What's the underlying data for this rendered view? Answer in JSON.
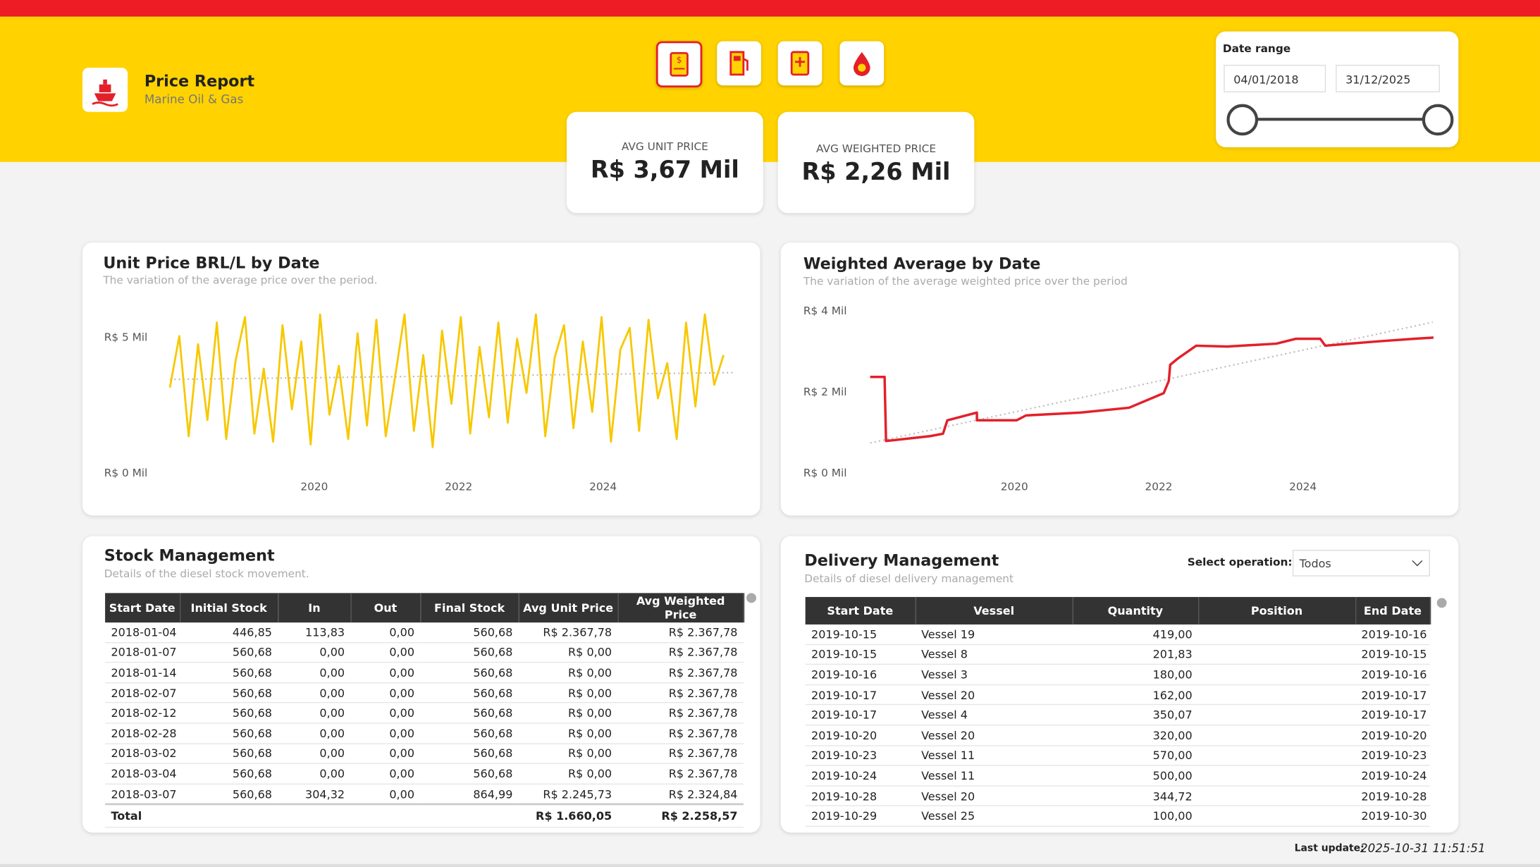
{
  "header": {
    "title": "Price Report",
    "subtitle": "Marine Oil & Gas"
  },
  "kpis": [
    {
      "label": "AVG UNIT PRICE",
      "value": "R$ 3,67 Mil"
    },
    {
      "label": "AVG WEIGHTED PRICE",
      "value": "R$ 2,26 Mil"
    }
  ],
  "date_range": {
    "label": "Date range",
    "start": "04/01/2018",
    "end": "31/12/2025"
  },
  "chart_data": [
    {
      "type": "line",
      "title": "Unit Price BRL/L by Date",
      "subtitle": "The variation of the average price over the period.",
      "x": [
        2018.0,
        2018.13,
        2018.26,
        2018.39,
        2018.52,
        2018.65,
        2018.78,
        2018.91,
        2019.04,
        2019.17,
        2019.3,
        2019.43,
        2019.56,
        2019.69,
        2019.82,
        2019.95,
        2020.08,
        2020.21,
        2020.34,
        2020.47,
        2020.6,
        2020.73,
        2020.86,
        2020.99,
        2021.12,
        2021.25,
        2021.38,
        2021.51,
        2021.64,
        2021.77,
        2021.9,
        2022.03,
        2022.16,
        2022.29,
        2022.42,
        2022.55,
        2022.68,
        2022.81,
        2022.94,
        2023.07,
        2023.2,
        2023.33,
        2023.46,
        2023.59,
        2023.72,
        2023.85,
        2023.98,
        2024.11,
        2024.24,
        2024.37,
        2024.5,
        2024.63,
        2024.76,
        2024.89,
        2025.02,
        2025.15,
        2025.28,
        2025.41,
        2025.54,
        2025.67
      ],
      "series": [
        {
          "color": "#f7c800",
          "values": [
            3.2,
            5.1,
            1.4,
            4.8,
            2.0,
            5.6,
            1.3,
            4.2,
            5.8,
            1.5,
            3.9,
            1.2,
            5.5,
            2.4,
            4.9,
            1.1,
            5.9,
            2.2,
            4.0,
            1.3,
            5.2,
            1.8,
            5.7,
            1.4,
            3.6,
            5.9,
            1.6,
            4.4,
            1.0,
            5.3,
            2.6,
            5.8,
            1.5,
            4.7,
            2.1,
            5.6,
            1.9,
            5.0,
            3.0,
            5.9,
            1.4,
            4.3,
            5.5,
            1.7,
            4.9,
            2.3,
            5.8,
            1.2,
            4.6,
            5.4,
            1.6,
            5.7,
            2.8,
            4.1,
            1.3,
            5.6,
            2.5,
            5.9,
            3.3,
            4.4
          ]
        }
      ],
      "trend": {
        "x": [
          2018.0,
          2025.8
        ],
        "values": [
          3.5,
          3.75
        ],
        "color": "#bbbbbb"
      },
      "xlim": [
        2017.8,
        2026.0
      ],
      "xticks": [
        2020,
        2022,
        2024
      ],
      "ylim": [
        0,
        6.5
      ],
      "yticks": [
        {
          "value": 0,
          "label": "R$ 0 Mil"
        },
        {
          "value": 5,
          "label": "R$ 5 Mil"
        }
      ]
    },
    {
      "type": "line",
      "title": "Weighted Average by Date",
      "subtitle": "The variation of the average weighted price over the period",
      "x": [
        2018.0,
        2018.2,
        2018.22,
        2018.83,
        2019.01,
        2019.07,
        2019.48,
        2019.48,
        2020.03,
        2020.16,
        2020.91,
        2021.59,
        2022.07,
        2022.14,
        2022.16,
        2022.27,
        2022.52,
        2022.95,
        2023.63,
        2023.9,
        2024.24,
        2024.31,
        2024.99,
        2025.54,
        2025.81
      ],
      "series": [
        {
          "color": "#e3202a",
          "values": [
            2.4,
            2.4,
            0.82,
            0.94,
            1.0,
            1.33,
            1.52,
            1.33,
            1.33,
            1.45,
            1.52,
            1.64,
            2.0,
            2.3,
            2.7,
            2.86,
            3.17,
            3.15,
            3.22,
            3.34,
            3.34,
            3.17,
            3.27,
            3.34,
            3.37
          ]
        }
      ],
      "trend": {
        "x": [
          2018.0,
          2025.8
        ],
        "values": [
          0.77,
          3.75
        ],
        "color": "#bbbbbb"
      },
      "xlim": [
        2017.8,
        2026.0
      ],
      "xticks": [
        2020,
        2022,
        2024
      ],
      "ylim": [
        0,
        4.3
      ],
      "yticks": [
        {
          "value": 0,
          "label": "R$ 0 Mil"
        },
        {
          "value": 2,
          "label": "R$ 2 Mil"
        },
        {
          "value": 4,
          "label": "R$ 4 Mil"
        }
      ]
    }
  ],
  "stock": {
    "title": "Stock Management",
    "subtitle": "Details of the diesel stock movement.",
    "columns": [
      "Start Date",
      "Initial Stock",
      "In",
      "Out",
      "Final Stock",
      "Avg Unit Price",
      "Avg Weighted Price"
    ],
    "rows": [
      [
        "2018-01-04",
        "446,85",
        "113,83",
        "0,00",
        "560,68",
        "R$ 2.367,78",
        "R$ 2.367,78"
      ],
      [
        "2018-01-07",
        "560,68",
        "0,00",
        "0,00",
        "560,68",
        "R$ 0,00",
        "R$ 2.367,78"
      ],
      [
        "2018-01-14",
        "560,68",
        "0,00",
        "0,00",
        "560,68",
        "R$ 0,00",
        "R$ 2.367,78"
      ],
      [
        "2018-02-07",
        "560,68",
        "0,00",
        "0,00",
        "560,68",
        "R$ 0,00",
        "R$ 2.367,78"
      ],
      [
        "2018-02-12",
        "560,68",
        "0,00",
        "0,00",
        "560,68",
        "R$ 0,00",
        "R$ 2.367,78"
      ],
      [
        "2018-02-28",
        "560,68",
        "0,00",
        "0,00",
        "560,68",
        "R$ 0,00",
        "R$ 2.367,78"
      ],
      [
        "2018-03-02",
        "560,68",
        "0,00",
        "0,00",
        "560,68",
        "R$ 0,00",
        "R$ 2.367,78"
      ],
      [
        "2018-03-04",
        "560,68",
        "0,00",
        "0,00",
        "560,68",
        "R$ 0,00",
        "R$ 2.367,78"
      ],
      [
        "2018-03-07",
        "560,68",
        "304,32",
        "0,00",
        "864,99",
        "R$ 2.245,73",
        "R$ 2.324,84"
      ]
    ],
    "total": [
      "Total",
      null,
      null,
      null,
      null,
      "R$ 1.660,05",
      "R$ 2.258,57"
    ]
  },
  "delivery": {
    "title": "Delivery Management",
    "subtitle": "Details of diesel delivery management",
    "filter_label": "Select operation:",
    "filter_value": "Todos",
    "columns": [
      "Start Date",
      "Vessel",
      "Quantity",
      "Position",
      "End Date"
    ],
    "rows": [
      [
        "2019-10-15",
        "Vessel 19",
        "419,00",
        null,
        "2019-10-16"
      ],
      [
        "2019-10-15",
        "Vessel 8",
        "201,83",
        null,
        "2019-10-15"
      ],
      [
        "2019-10-16",
        "Vessel 3",
        "180,00",
        null,
        "2019-10-16"
      ],
      [
        "2019-10-17",
        "Vessel 20",
        "162,00",
        null,
        "2019-10-17"
      ],
      [
        "2019-10-17",
        "Vessel 4",
        "350,07",
        null,
        "2019-10-17"
      ],
      [
        "2019-10-20",
        "Vessel 20",
        "320,00",
        null,
        "2019-10-20"
      ],
      [
        "2019-10-23",
        "Vessel 11",
        "570,00",
        null,
        "2019-10-23"
      ],
      [
        "2019-10-24",
        "Vessel 11",
        "500,00",
        null,
        "2019-10-24"
      ],
      [
        "2019-10-28",
        "Vessel 20",
        "344,72",
        null,
        "2019-10-28"
      ],
      [
        "2019-10-29",
        "Vessel 25",
        "100,00",
        null,
        "2019-10-30"
      ]
    ]
  },
  "footer": {
    "label": "Last update:",
    "value": "2025-10-31 11:51:51"
  }
}
